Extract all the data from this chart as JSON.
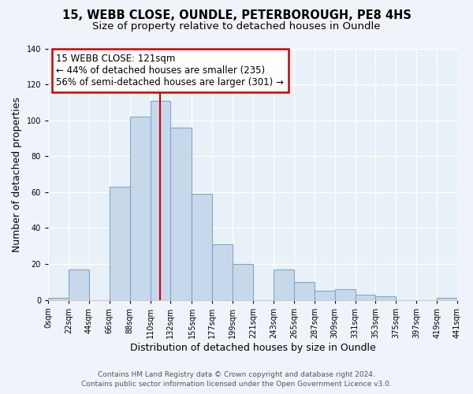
{
  "title_line1": "15, WEBB CLOSE, OUNDLE, PETERBOROUGH, PE8 4HS",
  "title_line2": "Size of property relative to detached houses in Oundle",
  "xlabel": "Distribution of detached houses by size in Oundle",
  "ylabel": "Number of detached properties",
  "bar_color": "#c8d8eb",
  "bar_edge_color": "#7aaaca",
  "annotation_box_color": "#cc0000",
  "marker_line_color": "#cc0000",
  "property_size": 121,
  "annotation_title": "15 WEBB CLOSE: 121sqm",
  "annotation_line2": "← 44% of detached houses are smaller (235)",
  "annotation_line3": "56% of semi-detached houses are larger (301) →",
  "bin_edges": [
    0,
    22,
    44,
    66,
    88,
    110,
    132,
    155,
    177,
    199,
    221,
    243,
    265,
    287,
    309,
    331,
    353,
    375,
    397,
    419,
    441
  ],
  "bar_heights": [
    1,
    17,
    0,
    63,
    102,
    111,
    96,
    59,
    31,
    20,
    0,
    17,
    10,
    5,
    6,
    3,
    2,
    0,
    0,
    1
  ],
  "xlim": [
    0,
    441
  ],
  "ylim": [
    0,
    140
  ],
  "yticks": [
    0,
    20,
    40,
    60,
    80,
    100,
    120,
    140
  ],
  "xtick_labels": [
    "0sqm",
    "22sqm",
    "44sqm",
    "66sqm",
    "88sqm",
    "110sqm",
    "132sqm",
    "155sqm",
    "177sqm",
    "199sqm",
    "221sqm",
    "243sqm",
    "265sqm",
    "287sqm",
    "309sqm",
    "331sqm",
    "353sqm",
    "375sqm",
    "397sqm",
    "419sqm",
    "441sqm"
  ],
  "footer_line1": "Contains HM Land Registry data © Crown copyright and database right 2024.",
  "footer_line2": "Contains public sector information licensed under the Open Government Licence v3.0.",
  "background_color": "#f0f4fa",
  "plot_background_color": "#e8f0f8",
  "title_fontsize": 10.5,
  "subtitle_fontsize": 9.5,
  "axis_label_fontsize": 9,
  "tick_fontsize": 7,
  "footer_fontsize": 6.5,
  "annotation_fontsize": 8.5
}
